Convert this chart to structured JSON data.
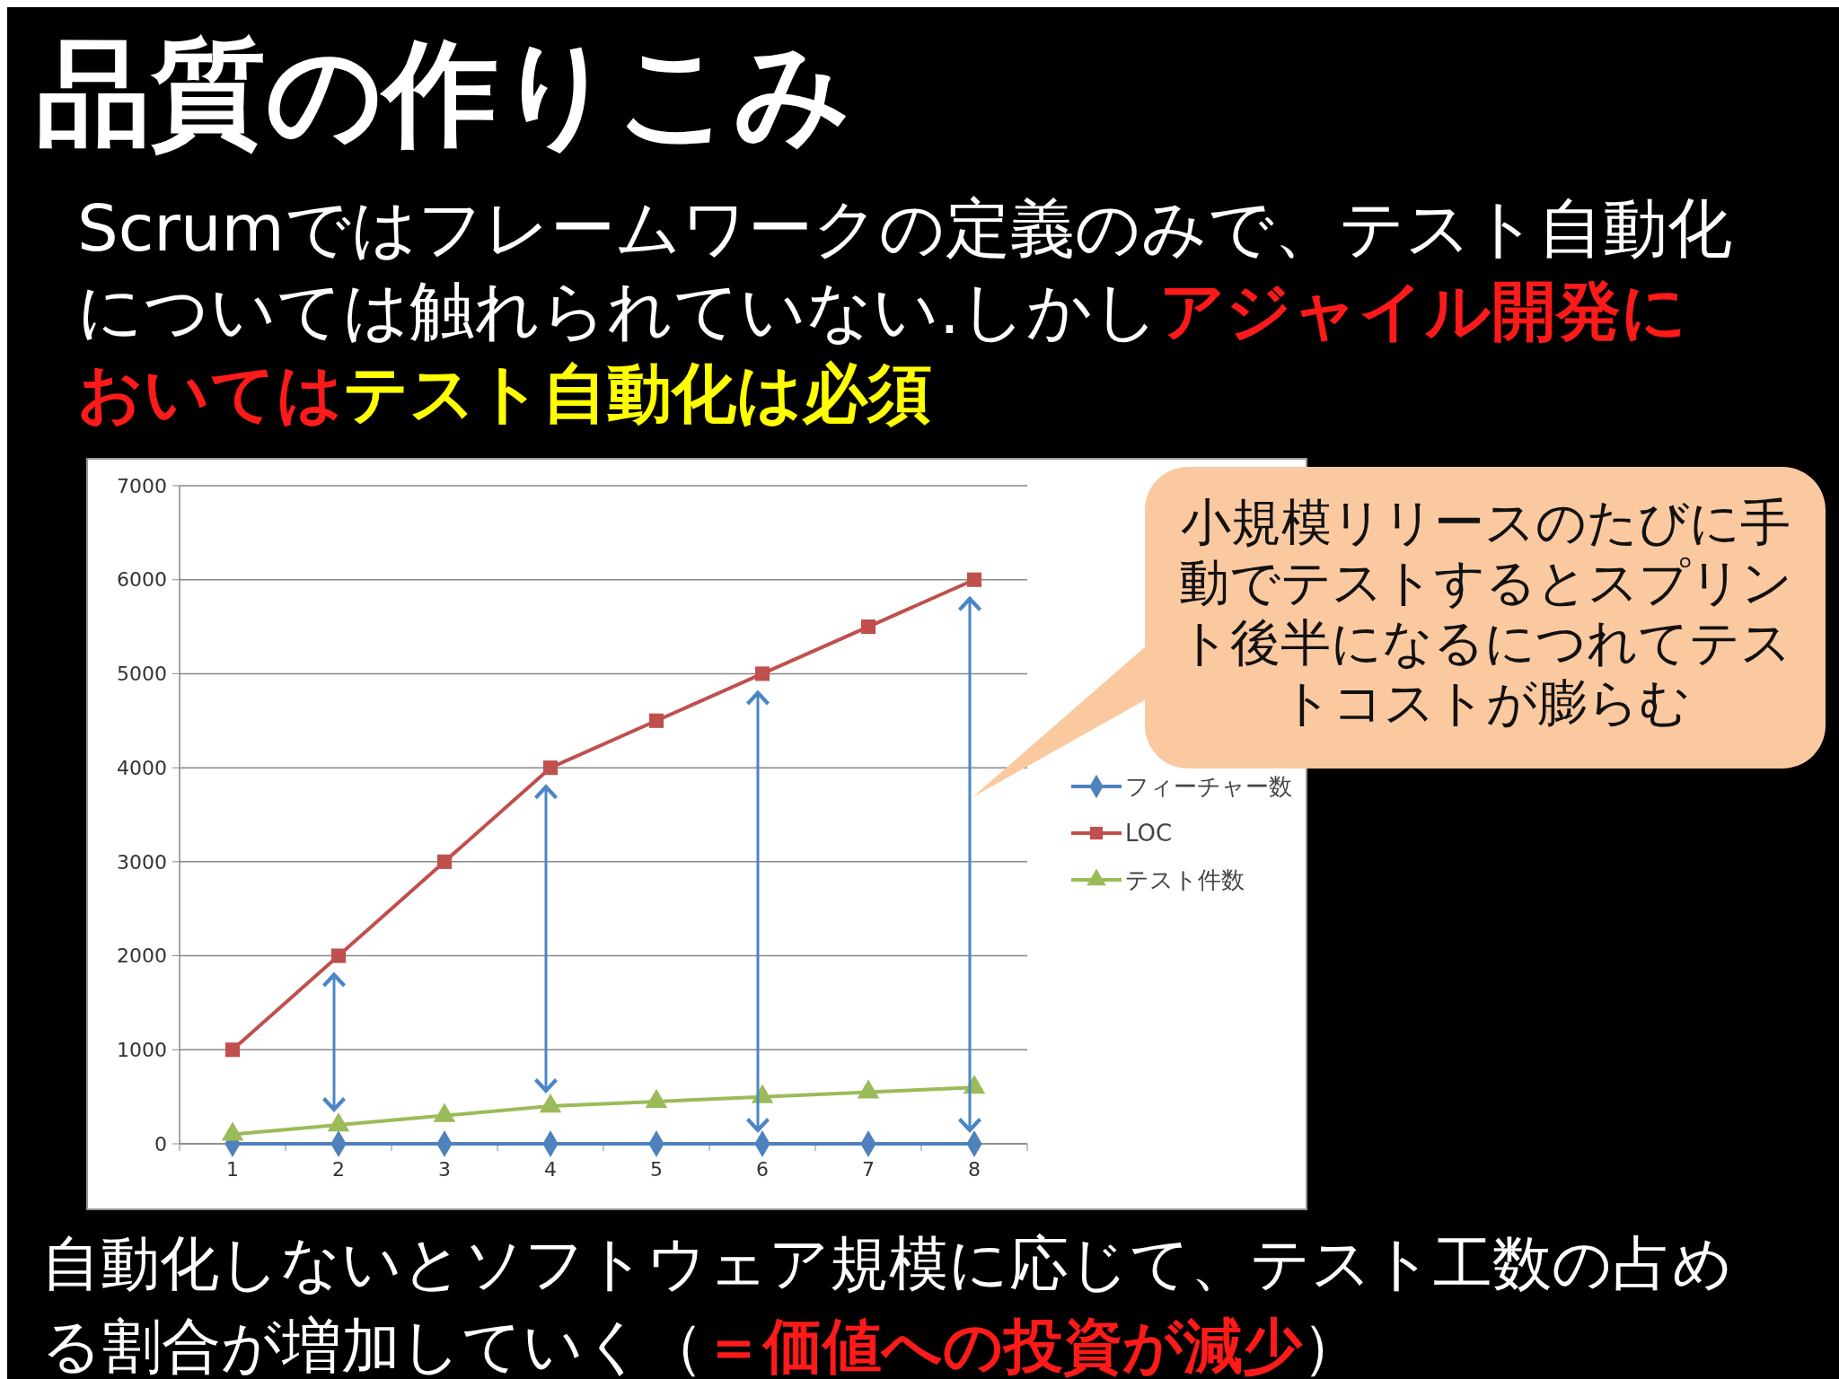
{
  "chart_data": {
    "type": "line",
    "title": "品質の作りこみ",
    "subtitle": "Scrumではフレームワークの定義のみで、テスト自動化については触れられていない.しかしアジャイル開発においてはテスト自動化は必須",
    "categories": [
      "1",
      "2",
      "3",
      "4",
      "5",
      "6",
      "7",
      "8"
    ],
    "series": [
      {
        "name": "フィーチャー数",
        "color": "#4f81bd",
        "marker": "diamond",
        "values": [
          0,
          0,
          0,
          0,
          0,
          0,
          0,
          0
        ]
      },
      {
        "name": "LOC",
        "color": "#c0504d",
        "marker": "square",
        "values": [
          1000,
          2000,
          3000,
          4000,
          4500,
          5000,
          5500,
          6000
        ]
      },
      {
        "name": "テスト件数",
        "color": "#9bbb59",
        "marker": "triangle",
        "values": [
          100,
          200,
          300,
          400,
          450,
          500,
          550,
          600
        ]
      }
    ],
    "ylim": [
      0,
      7000
    ],
    "yticks": [
      0,
      1000,
      2000,
      3000,
      4000,
      5000,
      6000,
      7000
    ],
    "grid": "y",
    "legend": "right",
    "annotations": [
      "小規模リリースのたびに手動でテストするとスプリント後半になるにつれてテストコストが膨らむ",
      "自動化しないとソフトウェア規模に応じて、テスト工数の占める割合が増加していく（＝価値への投資が減少）"
    ]
  }
}
